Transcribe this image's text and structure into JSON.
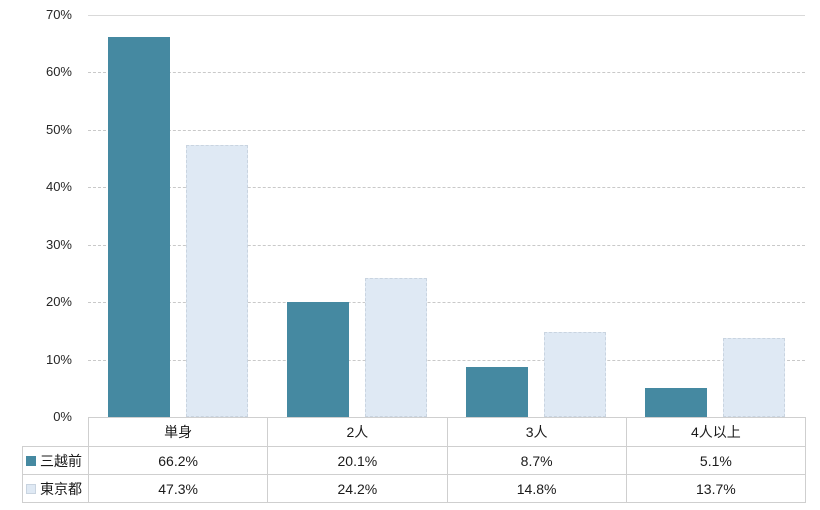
{
  "chart_data": {
    "type": "bar",
    "title": "",
    "categories": [
      "単身",
      "2人",
      "3人",
      "4人以上"
    ],
    "series": [
      {
        "name": "三越前",
        "color": "#4589a1",
        "values": [
          66.2,
          20.1,
          8.7,
          5.1
        ]
      },
      {
        "name": "東京都",
        "color": "#dfe9f4",
        "values": [
          47.3,
          24.2,
          14.8,
          13.7
        ]
      }
    ],
    "value_suffix": "%",
    "ylim": [
      0,
      70
    ],
    "ytick_step": 10,
    "ytick_labels": [
      "0%",
      "10%",
      "20%",
      "30%",
      "40%",
      "50%",
      "60%",
      "70%"
    ],
    "grid": "horizontal-dashed",
    "legend_position": "data-table-left",
    "data_table_values": [
      [
        "66.2%",
        "20.1%",
        "8.7%",
        "5.1%"
      ],
      [
        "47.3%",
        "24.2%",
        "14.8%",
        "13.7%"
      ]
    ],
    "colors": {
      "series_1": "#4589a1",
      "series_2": "#dfe9f4",
      "gridline": "#c9c9c9",
      "table_border": "#cfcfcf",
      "text": "#1a1a1a",
      "background": "#ffffff"
    }
  }
}
